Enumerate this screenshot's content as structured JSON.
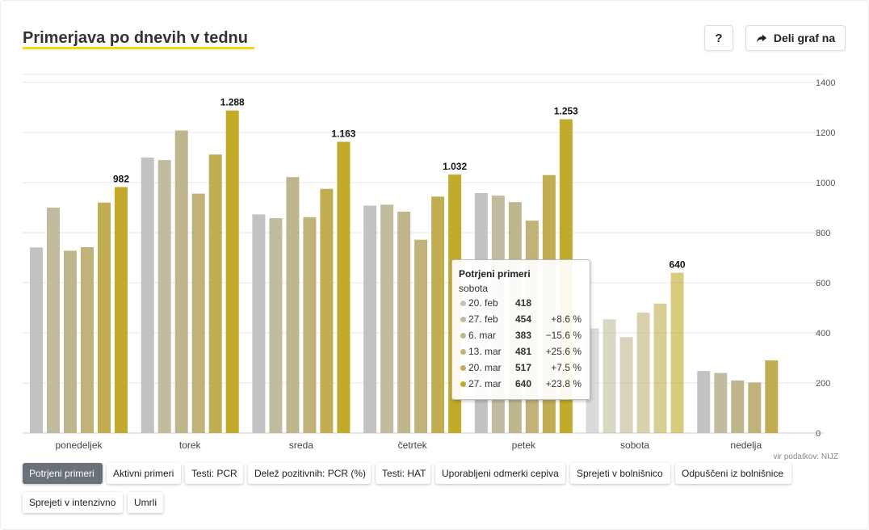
{
  "title": "Primerjava po dnevih v tednu",
  "help_label": "?",
  "share_label": "Deli graf na",
  "share_icon": "share-arrow-icon",
  "source": "vir podatkov: NIJZ",
  "tabs": [
    {
      "label": "Potrjeni primeri",
      "active": true
    },
    {
      "label": "Aktivni primeri",
      "active": false
    },
    {
      "label": "Testi: PCR",
      "active": false
    },
    {
      "label": "Delež pozitivnih: PCR (%)",
      "active": false
    },
    {
      "label": "Testi: HAT",
      "active": false
    },
    {
      "label": "Uporabljeni odmerki cepiva",
      "active": false
    },
    {
      "label": "Sprejeti v bolnišnico",
      "active": false
    },
    {
      "label": "Odpuščeni iz bolnišnice",
      "active": false
    },
    {
      "label": "Sprejeti v intenzivno",
      "active": false
    },
    {
      "label": "Umrli",
      "active": false
    }
  ],
  "tooltip": {
    "title": "Potrjeni primeri",
    "subtitle": "sobota",
    "rows": [
      {
        "date": "20. feb",
        "value": "418",
        "change": ""
      },
      {
        "date": "27. feb",
        "value": "454",
        "change": "+8.6 %"
      },
      {
        "date": "6. mar",
        "value": "383",
        "change": "−15.6 %"
      },
      {
        "date": "13. mar",
        "value": "481",
        "change": "+25.6 %"
      },
      {
        "date": "20. mar",
        "value": "517",
        "change": "+7.5 %"
      },
      {
        "date": "27. mar",
        "value": "640",
        "change": "+23.8 %"
      }
    ]
  },
  "chart_data": {
    "type": "bar",
    "categories": [
      "ponedeljek",
      "torek",
      "sreda",
      "četrtek",
      "petek",
      "sobota",
      "nedelja"
    ],
    "series": [
      {
        "name": "20. feb",
        "color": "#c2c2c2",
        "values": [
          741,
          1100,
          873,
          908,
          958,
          418,
          248
        ]
      },
      {
        "name": "27. feb",
        "color": "#c1bc9f",
        "values": [
          900,
          1090,
          858,
          912,
          948,
          454,
          240
        ]
      },
      {
        "name": "6. mar",
        "color": "#bfb68d",
        "values": [
          728,
          1208,
          1022,
          884,
          922,
          383,
          210
        ]
      },
      {
        "name": "13. mar",
        "color": "#c0b278",
        "values": [
          742,
          956,
          862,
          772,
          848,
          481,
          202
        ]
      },
      {
        "name": "20. mar",
        "color": "#c1ad52",
        "values": [
          920,
          1112,
          975,
          944,
          1030,
          517,
          290
        ]
      },
      {
        "name": "27. mar",
        "color": "#c2aa2a",
        "values": [
          982,
          1288,
          1163,
          1032,
          1253,
          640,
          null
        ]
      }
    ],
    "data_labels": [
      "982",
      "1.288",
      "1.163",
      "1.032",
      "1.253",
      "640"
    ],
    "highlight_category": "sobota",
    "y_ticks": [
      "0",
      "200",
      "400",
      "600",
      "800",
      "1000",
      "1200",
      "1400"
    ],
    "ylim": [
      0,
      1400
    ],
    "grid": true,
    "y_axis_position": "right",
    "legend": "none"
  }
}
